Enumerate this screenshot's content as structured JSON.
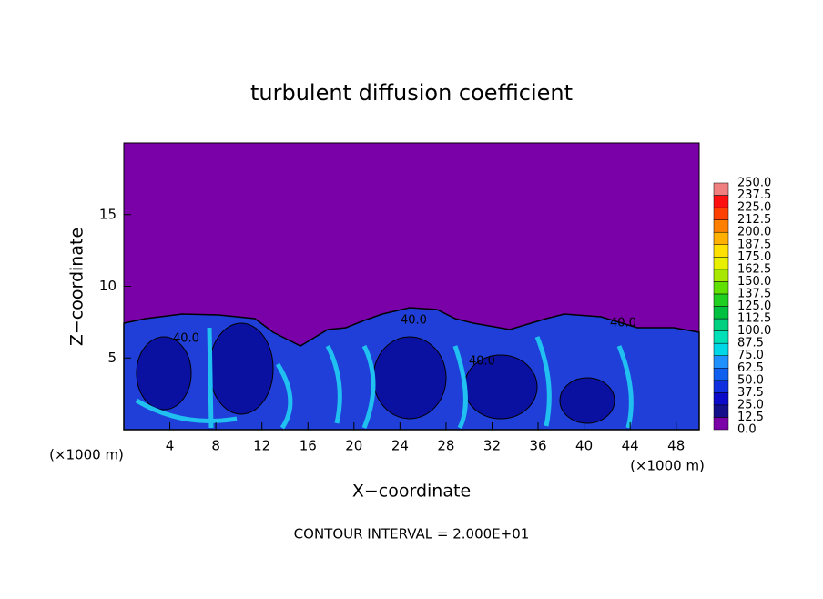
{
  "chart_data": {
    "type": "contour",
    "title": "turbulent diffusion coefficient",
    "x_label": "X−coordinate",
    "y_label": "Z−coordinate",
    "x_unit_left": "(×1000 m)",
    "x_unit_right": "(×1000 m)",
    "footnote": "CONTOUR INTERVAL = 2.000E+01",
    "xlim": [
      0,
      50
    ],
    "xticks": [
      4,
      8,
      12,
      16,
      20,
      24,
      28,
      32,
      36,
      40,
      44,
      48
    ],
    "ylim": [
      0,
      20
    ],
    "yticks": [
      5,
      10,
      15
    ],
    "contour_labels": [
      "40.0",
      "40.0",
      "40.0",
      "40.0"
    ],
    "colorbar": {
      "levels": [
        {
          "value": 0,
          "label": "0.0"
        },
        12.5,
        {
          "value": 25,
          "label": "25.0"
        },
        37.5,
        {
          "value": 50,
          "label": "50.0"
        },
        62.5,
        {
          "value": 75,
          "label": "75.0"
        },
        87.5,
        {
          "value": 100,
          "label": "100.0"
        },
        112.5,
        {
          "value": 125,
          "label": "125.0"
        },
        137.5,
        {
          "value": 150,
          "label": "150.0"
        },
        162.5,
        {
          "value": 175,
          "label": "175.0"
        },
        187.5,
        {
          "value": 200,
          "label": "200.0"
        },
        212.5,
        {
          "value": 225,
          "label": "225.0"
        },
        237.5,
        {
          "value": 250,
          "label": "250.0"
        }
      ],
      "colors": [
        "#7a00a8",
        "#14108c",
        "#0a0ac8",
        "#1030e0",
        "#1060f0",
        "#2090ff",
        "#00d8e8",
        "#00e0b8",
        "#00d080",
        "#00c040",
        "#20d020",
        "#60e000",
        "#a8e800",
        "#e8f000",
        "#ffe000",
        "#ffb000",
        "#ff8000",
        "#ff4000",
        "#ff1010",
        "#f08080"
      ]
    }
  }
}
